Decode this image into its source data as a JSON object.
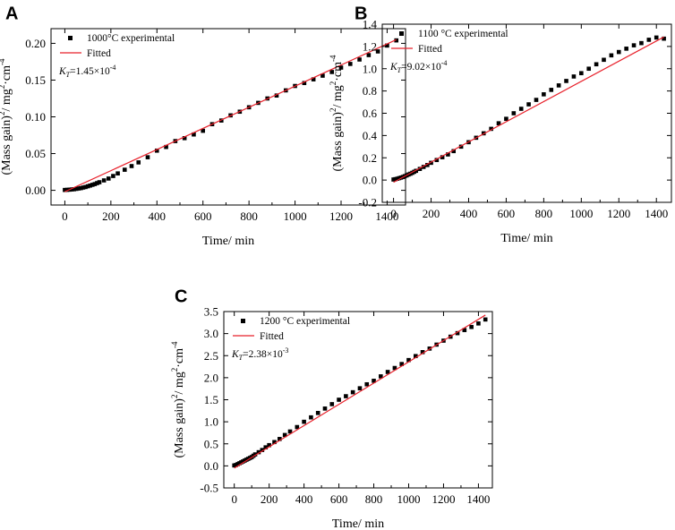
{
  "figure": {
    "colors": {
      "axis": "#000000",
      "fitted": "#e8212b",
      "marker": "#000000",
      "background": "#ffffff"
    }
  },
  "chart_data": [
    {
      "id": "A",
      "type": "scatter",
      "panel_label": "A",
      "xlabel": "Time/ min",
      "ylabel_base": "(Mass gain)",
      "ylabel_sup1": "2",
      "ylabel_mid": "/ mg",
      "ylabel_sup2": "2",
      "ylabel_mid2": "·cm",
      "ylabel_sup3": "-4",
      "xlim": [
        -60,
        1480
      ],
      "ylim": [
        -0.02,
        0.22
      ],
      "xticks": [
        0,
        200,
        400,
        600,
        800,
        1000,
        1200,
        1400
      ],
      "yticks": [
        0.0,
        0.05,
        0.1,
        0.15,
        0.2
      ],
      "ytick_labels": [
        "0.00",
        "0.05",
        "0.10",
        "0.15",
        "0.20"
      ],
      "grid": false,
      "legend_position": "top-left",
      "series": [
        {
          "name": "1000°C experimental",
          "kind": "markers",
          "x": [
            0,
            10,
            20,
            30,
            40,
            50,
            60,
            70,
            80,
            90,
            100,
            110,
            120,
            130,
            140,
            150,
            170,
            190,
            210,
            230,
            260,
            290,
            320,
            360,
            400,
            440,
            480,
            520,
            560,
            600,
            640,
            680,
            720,
            760,
            800,
            840,
            880,
            920,
            960,
            1000,
            1040,
            1080,
            1120,
            1160,
            1200,
            1240,
            1280,
            1320,
            1360,
            1400,
            1440
          ],
          "y": [
            0.0005,
            0.0007,
            0.0009,
            0.0012,
            0.0015,
            0.002,
            0.0025,
            0.003,
            0.0038,
            0.0045,
            0.0055,
            0.0065,
            0.0075,
            0.0085,
            0.0098,
            0.011,
            0.0135,
            0.016,
            0.0195,
            0.023,
            0.028,
            0.033,
            0.038,
            0.045,
            0.054,
            0.059,
            0.067,
            0.071,
            0.076,
            0.081,
            0.09,
            0.095,
            0.102,
            0.107,
            0.113,
            0.119,
            0.125,
            0.129,
            0.136,
            0.142,
            0.146,
            0.151,
            0.156,
            0.161,
            0.167,
            0.172,
            0.178,
            0.184,
            0.189,
            0.197,
            0.204
          ]
        },
        {
          "name": "Fitted",
          "kind": "line",
          "x": [
            0,
            1440
          ],
          "y": [
            -0.002,
            0.205
          ]
        }
      ],
      "annotation": {
        "k_label": "K",
        "k_sub": "T",
        "k_value": "=1.45×10",
        "k_exp": "-4"
      }
    },
    {
      "id": "B",
      "type": "scatter",
      "panel_label": "B",
      "xlabel": "Time/ min",
      "ylabel_base": "(Mass gain)",
      "ylabel_sup1": "2",
      "ylabel_mid": "/ mg",
      "ylabel_sup2": "2",
      "ylabel_mid2": "·cm",
      "ylabel_sup3": "-4",
      "xlim": [
        -60,
        1480
      ],
      "ylim": [
        -0.2,
        1.4
      ],
      "xticks": [
        0,
        200,
        400,
        600,
        800,
        1000,
        1200,
        1400
      ],
      "yticks": [
        -0.2,
        0.0,
        0.2,
        0.4,
        0.6,
        0.8,
        1.0,
        1.2,
        1.4
      ],
      "ytick_labels": [
        "-0.2",
        "0.0",
        "0.2",
        "0.4",
        "0.6",
        "0.8",
        "1.0",
        "1.2",
        "1.4"
      ],
      "grid": false,
      "legend_position": "top-left",
      "series": [
        {
          "name": "1100 °C experimental",
          "kind": "markers",
          "x": [
            0,
            10,
            20,
            30,
            40,
            50,
            60,
            70,
            80,
            90,
            100,
            110,
            120,
            140,
            160,
            180,
            200,
            230,
            260,
            290,
            320,
            360,
            400,
            440,
            480,
            520,
            560,
            600,
            640,
            680,
            720,
            760,
            800,
            840,
            880,
            920,
            960,
            1000,
            1040,
            1080,
            1120,
            1160,
            1200,
            1240,
            1280,
            1320,
            1360,
            1400,
            1440
          ],
          "y": [
            0.005,
            0.008,
            0.012,
            0.017,
            0.022,
            0.028,
            0.035,
            0.042,
            0.05,
            0.057,
            0.065,
            0.074,
            0.083,
            0.1,
            0.118,
            0.135,
            0.155,
            0.18,
            0.205,
            0.23,
            0.26,
            0.3,
            0.34,
            0.38,
            0.42,
            0.46,
            0.51,
            0.55,
            0.6,
            0.64,
            0.68,
            0.72,
            0.77,
            0.81,
            0.85,
            0.89,
            0.93,
            0.96,
            1.0,
            1.04,
            1.08,
            1.12,
            1.15,
            1.18,
            1.21,
            1.23,
            1.26,
            1.28,
            1.27
          ]
        },
        {
          "name": "Fitted",
          "kind": "line",
          "x": [
            0,
            1440
          ],
          "y": [
            -0.02,
            1.285
          ]
        }
      ],
      "annotation": {
        "k_label": "K",
        "k_sub": "T",
        "k_value": "=9.02×10",
        "k_exp": "-4"
      }
    },
    {
      "id": "C",
      "type": "scatter",
      "panel_label": "C",
      "xlabel": "Time/ min",
      "ylabel_base": "(Mass gain)",
      "ylabel_sup1": "2",
      "ylabel_mid": "/ mg",
      "ylabel_sup2": "2",
      "ylabel_mid2": "·cm",
      "ylabel_sup3": "-4",
      "xlim": [
        -60,
        1480
      ],
      "ylim": [
        -0.5,
        3.5
      ],
      "xticks": [
        0,
        200,
        400,
        600,
        800,
        1000,
        1200,
        1400
      ],
      "yticks": [
        -0.5,
        0.0,
        0.5,
        1.0,
        1.5,
        2.0,
        2.5,
        3.0,
        3.5
      ],
      "ytick_labels": [
        "-0.5",
        "0.0",
        "0.5",
        "1.0",
        "1.5",
        "2.0",
        "2.5",
        "3.0",
        "3.5"
      ],
      "grid": false,
      "legend_position": "top-left",
      "series": [
        {
          "name": "1200 °C experimental",
          "kind": "markers",
          "x": [
            0,
            10,
            20,
            30,
            40,
            50,
            60,
            70,
            80,
            90,
            100,
            110,
            120,
            140,
            160,
            180,
            200,
            230,
            260,
            290,
            320,
            360,
            400,
            440,
            480,
            520,
            560,
            600,
            640,
            680,
            720,
            760,
            800,
            840,
            880,
            920,
            960,
            1000,
            1040,
            1080,
            1120,
            1160,
            1200,
            1240,
            1280,
            1320,
            1360,
            1400,
            1440
          ],
          "y": [
            0.01,
            0.02,
            0.04,
            0.06,
            0.08,
            0.1,
            0.12,
            0.14,
            0.16,
            0.18,
            0.2,
            0.23,
            0.26,
            0.31,
            0.36,
            0.42,
            0.47,
            0.54,
            0.61,
            0.7,
            0.78,
            0.88,
            1.0,
            1.1,
            1.2,
            1.3,
            1.4,
            1.5,
            1.58,
            1.67,
            1.76,
            1.85,
            1.93,
            2.03,
            2.13,
            2.22,
            2.31,
            2.4,
            2.49,
            2.58,
            2.66,
            2.75,
            2.84,
            2.93,
            3.01,
            3.08,
            3.15,
            3.23,
            3.32
          ]
        },
        {
          "name": "Fitted",
          "kind": "line",
          "x": [
            0,
            1440
          ],
          "y": [
            -0.05,
            3.42
          ]
        }
      ],
      "annotation": {
        "k_label": "K",
        "k_sub": "T",
        "k_value": "=2.38×10",
        "k_exp": "-3"
      }
    }
  ]
}
